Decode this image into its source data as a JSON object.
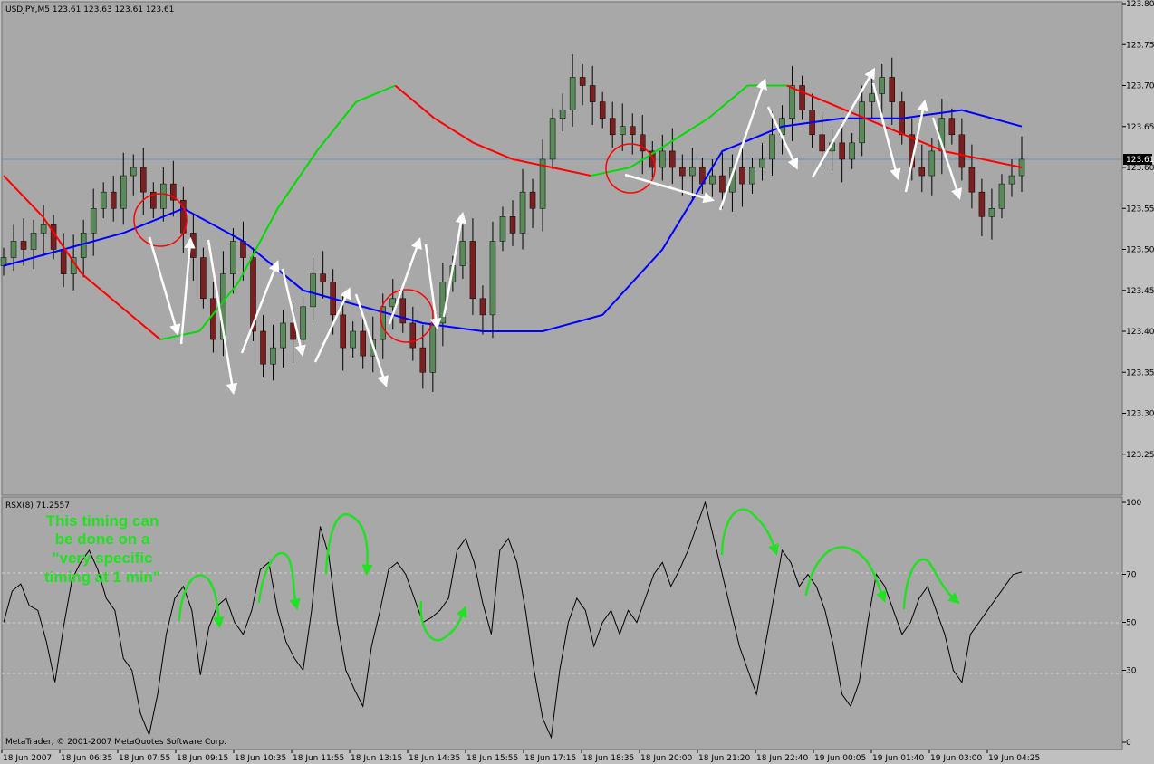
{
  "header": {
    "symbol_label": "USDJPY,M5",
    "ohlc": "123.61 123.63 123.61 123.61"
  },
  "indicator": {
    "label": "RSX(8) 71.2557"
  },
  "annotation": {
    "lines": [
      "This timing can",
      "be done on a",
      "\"very specific",
      "timing at 1 min\""
    ]
  },
  "footer": {
    "copyright": "MetaTrader, © 2001-2007 MetaQuotes Software Corp."
  },
  "price_axis": {
    "ticks": [
      "123.80",
      "123.75",
      "123.70",
      "123.65",
      "123.60",
      "123.55",
      "123.50",
      "123.45",
      "123.40",
      "123.35",
      "123.30",
      "123.25"
    ],
    "current_price": "123.61"
  },
  "rsx_axis": {
    "ticks": [
      "100",
      "70",
      "50",
      "30",
      "0"
    ]
  },
  "time_axis": {
    "ticks": [
      "18 Jun 2007",
      "18 Jun 06:35",
      "18 Jun 07:55",
      "18 Jun 09:15",
      "18 Jun 10:35",
      "18 Jun 11:55",
      "18 Jun 13:15",
      "18 Jun 14:35",
      "18 Jun 15:55",
      "18 Jun 17:15",
      "18 Jun 18:35",
      "18 Jun 20:00",
      "18 Jun 21:20",
      "18 Jun 22:40",
      "19 Jun 00:05",
      "19 Jun 01:40",
      "19 Jun 03:00",
      "19 Jun 04:25"
    ]
  },
  "colors": {
    "background": "#a8a8a8",
    "up_candle": "#5a8a5a",
    "down_candle": "#7a2020",
    "slow_ma": "#0000ff",
    "fast_ma_down": "#ff0000",
    "fast_ma_up": "#00dd00",
    "annotation": "#22e022",
    "arrows": "#ffffff",
    "circles": "#ff0000"
  },
  "chart_data": [
    {
      "type": "line",
      "title": "USDJPY,M5",
      "ylim": [
        123.2,
        123.8
      ],
      "series": [
        {
          "values": [
            123.49,
            123.51,
            123.5,
            123.52,
            123.53,
            123.5,
            123.47,
            123.49,
            123.52,
            123.55,
            123.57,
            123.55,
            123.59,
            123.6,
            123.57,
            123.55,
            123.58,
            123.56,
            123.52,
            123.49,
            123.44,
            123.39,
            123.47,
            123.51,
            123.49,
            123.4,
            123.36,
            123.38,
            123.41,
            123.39,
            123.43,
            123.47,
            123.46,
            123.42,
            123.38,
            123.4,
            123.37,
            123.39,
            123.43,
            123.44,
            123.41,
            123.38,
            123.35,
            123.41,
            123.46,
            123.48,
            123.51,
            123.44,
            123.42,
            123.51,
            123.54,
            123.52,
            123.57,
            123.55,
            123.61,
            123.66,
            123.67,
            123.71,
            123.7,
            123.68,
            123.66,
            123.64,
            123.65,
            123.64,
            123.62,
            123.6,
            123.62,
            123.6,
            123.59,
            123.6,
            123.58,
            123.59,
            123.57,
            123.6,
            123.58,
            123.6,
            123.61,
            123.64,
            123.66,
            123.7,
            123.67,
            123.64,
            123.62,
            123.63,
            123.61,
            123.63,
            123.68,
            123.69,
            123.71,
            123.68,
            123.64,
            123.6,
            123.59,
            123.62,
            123.66,
            123.64,
            123.6,
            123.57,
            123.54,
            123.55,
            123.58,
            123.59,
            123.61
          ]
        },
        {
          "values": [
            123.48,
            123.5,
            123.52,
            123.55,
            123.51,
            123.45,
            123.43,
            123.41,
            123.4,
            123.4,
            123.42,
            123.5,
            123.62,
            123.65,
            123.66,
            123.66,
            123.67,
            123.65
          ]
        },
        {
          "values": [
            123.59,
            123.54,
            123.47,
            123.43,
            123.39,
            123.4,
            123.46,
            123.55,
            123.62,
            123.68,
            123.7,
            123.66,
            123.63,
            123.61,
            123.6,
            123.59,
            123.6,
            123.63,
            123.66,
            123.7,
            123.7,
            123.68,
            123.66,
            123.64,
            123.62,
            123.61,
            123.6
          ]
        }
      ]
    },
    {
      "type": "line",
      "title": "RSX(8) 71.2557",
      "ylim": [
        0,
        100
      ],
      "series": [
        {
          "values": [
            50,
            63,
            66,
            57,
            55,
            42,
            25,
            48,
            68,
            75,
            80,
            72,
            60,
            55,
            35,
            30,
            12,
            3,
            20,
            45,
            60,
            65,
            55,
            28,
            48,
            57,
            60,
            50,
            45,
            55,
            72,
            75,
            55,
            42,
            35,
            30,
            55,
            90,
            78,
            50,
            30,
            22,
            15,
            40,
            55,
            72,
            75,
            70,
            60,
            50,
            52,
            55,
            60,
            80,
            85,
            75,
            58,
            45,
            80,
            85,
            75,
            55,
            30,
            10,
            2,
            30,
            50,
            60,
            55,
            40,
            50,
            55,
            45,
            55,
            50,
            60,
            70,
            75,
            65,
            72,
            80,
            90,
            100,
            85,
            70,
            55,
            40,
            30,
            20,
            40,
            60,
            80,
            75,
            65,
            70,
            65,
            55,
            40,
            20,
            15,
            25,
            50,
            70,
            65,
            55,
            45,
            50,
            60,
            65,
            55,
            45,
            30,
            25,
            45,
            50,
            55,
            60,
            65,
            70,
            71
          ]
        }
      ]
    }
  ]
}
